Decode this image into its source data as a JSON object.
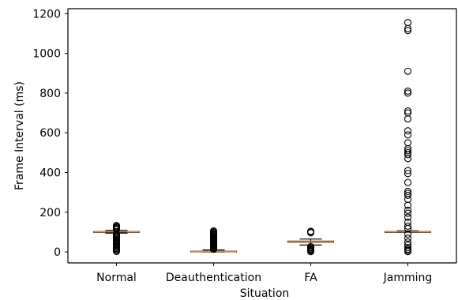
{
  "chart_data": {
    "type": "box",
    "title": "",
    "xlabel": "Situation",
    "ylabel": "Frame Interval (ms)",
    "ylim": [
      -55,
      1225
    ],
    "yticks": [
      0,
      200,
      400,
      600,
      800,
      1000,
      1200
    ],
    "grid": false,
    "categories": [
      "Normal",
      "Deauthentication",
      "FA",
      "Jamming"
    ],
    "boxes": [
      {
        "category": "Normal",
        "whisker_low": 95,
        "q1": 101,
        "median": 102,
        "q3": 103,
        "whisker_high": 108,
        "outliers": [
          3,
          8,
          13,
          18,
          23,
          28,
          33,
          38,
          43,
          48,
          53,
          58,
          63,
          68,
          73,
          78,
          83,
          88,
          112,
          116,
          120,
          124,
          128,
          133
        ]
      },
      {
        "category": "Deauthentication",
        "whisker_low": 0,
        "q1": 1,
        "median": 2,
        "q3": 4,
        "whisker_high": 10,
        "outliers": [
          14,
          18,
          22,
          26,
          30,
          34,
          38,
          42,
          46,
          50,
          54,
          58,
          62,
          66,
          70,
          74,
          78,
          82,
          86,
          90,
          94,
          98,
          102,
          106
        ]
      },
      {
        "category": "FA",
        "whisker_low": 35,
        "q1": 49,
        "median": 52,
        "q3": 55,
        "whisker_high": 65,
        "outliers": [
          2,
          5,
          9,
          13,
          17,
          22,
          27,
          97,
          101,
          104
        ]
      },
      {
        "category": "Jamming",
        "whisker_low": 100,
        "q1": 101,
        "median": 102,
        "q3": 103,
        "whisker_high": 106,
        "outliers": [
          2,
          8,
          14,
          22,
          35,
          50,
          70,
          90,
          118,
          130,
          150,
          175,
          195,
          210,
          235,
          265,
          285,
          295,
          305,
          350,
          395,
          410,
          470,
          490,
          500,
          510,
          520,
          550,
          590,
          610,
          670,
          700,
          710,
          800,
          810,
          910,
          1115,
          1125,
          1155
        ]
      }
    ]
  }
}
